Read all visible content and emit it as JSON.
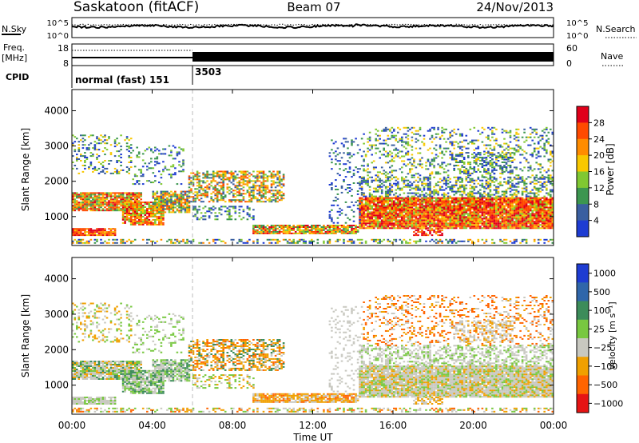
{
  "header": {
    "station": "Saskatoon (fitACF)",
    "beam": "Beam 07",
    "date": "24/Nov/2013"
  },
  "top_panels": {
    "nsky_label": "N.Sky",
    "nsearch_label": "N.Search",
    "nsky_ticks": [
      "10^5",
      "10^0"
    ],
    "nsearch_ticks": [
      "10^5",
      "10^0"
    ],
    "freq_label_1": "Freq.",
    "freq_label_2": "[MHz]",
    "freq_ticks": [
      "18",
      "8"
    ],
    "nave_label": "Nave",
    "nave_ticks": [
      "60",
      "0"
    ],
    "cpid_label": "CPID",
    "cpid_entries": [
      {
        "text": "normal (fast) 151",
        "start_hour": 0
      },
      {
        "text": "3503",
        "start_hour": 6
      }
    ]
  },
  "chart_data": [
    {
      "type": "heatmap",
      "name": "power",
      "ylabel": "Slant Range [km]",
      "xlabel": "",
      "x_range_hours": [
        0,
        24
      ],
      "ylim": [
        180,
        4600
      ],
      "ytick_values": [
        1000,
        2000,
        3000,
        4000
      ],
      "ytick_labels": [
        "1000",
        "2000",
        "3000",
        "4000"
      ],
      "colorbar": {
        "label": "Power [dB]",
        "tick_labels": [
          "28",
          "24",
          "20",
          "16",
          "12",
          "8",
          "4"
        ],
        "colors": [
          "#e0001a",
          "#ff4a00",
          "#ff8c00",
          "#f8c800",
          "#80c832",
          "#3c9650",
          "#3a5fa0",
          "#1e3cd2"
        ]
      }
    },
    {
      "type": "heatmap",
      "name": "velocity",
      "ylabel": "Slant Range [km]",
      "xlabel": "Time UT",
      "x_range_hours": [
        0,
        24
      ],
      "xtick_labels": [
        "00:00",
        "04:00",
        "08:00",
        "12:00",
        "16:00",
        "20:00",
        "00:00"
      ],
      "ylim": [
        180,
        4600
      ],
      "ytick_values": [
        1000,
        2000,
        3000,
        4000
      ],
      "ytick_labels": [
        "1000",
        "2000",
        "3000",
        "4000"
      ],
      "colorbar": {
        "label": "Velocity [m s⁻¹]",
        "tick_labels": [
          "1000",
          "500",
          "100",
          "25",
          "−25",
          "−100",
          "−500",
          "−1000"
        ],
        "colors": [
          "#1e3cd2",
          "#2f66aa",
          "#3c8c5a",
          "#78c840",
          "#c8c8c0",
          "#f0a000",
          "#ff6400",
          "#e61414"
        ]
      }
    }
  ]
}
